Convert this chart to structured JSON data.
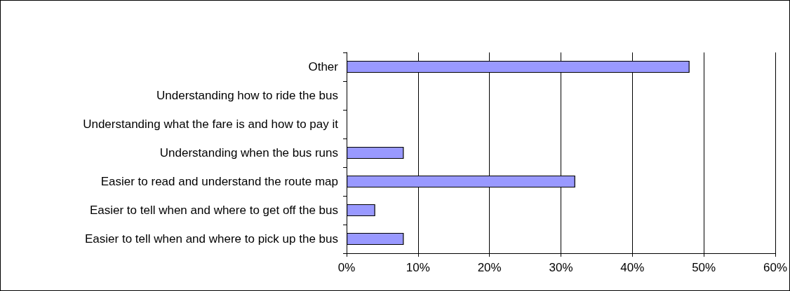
{
  "chart_data": {
    "type": "bar",
    "orientation": "horizontal",
    "categories": [
      "Other",
      "Understanding how to ride the bus",
      "Understanding what the fare is and how to pay it",
      "Understanding when the bus runs",
      "Easier to read and understand the route map",
      "Easier to tell when and where to get off the bus",
      "Easier to tell when and where to pick up the bus"
    ],
    "values": [
      48,
      0,
      0,
      8,
      32,
      4,
      8
    ],
    "color": "#9999ff",
    "xlim": [
      0,
      60
    ],
    "xticks": [
      {
        "value": 0,
        "label": "0%"
      },
      {
        "value": 10,
        "label": "10%"
      },
      {
        "value": 20,
        "label": "20%"
      },
      {
        "value": 30,
        "label": "30%"
      },
      {
        "value": 40,
        "label": "40%"
      },
      {
        "value": 50,
        "label": "50%"
      },
      {
        "value": 60,
        "label": "60%"
      }
    ],
    "grid": "x"
  }
}
